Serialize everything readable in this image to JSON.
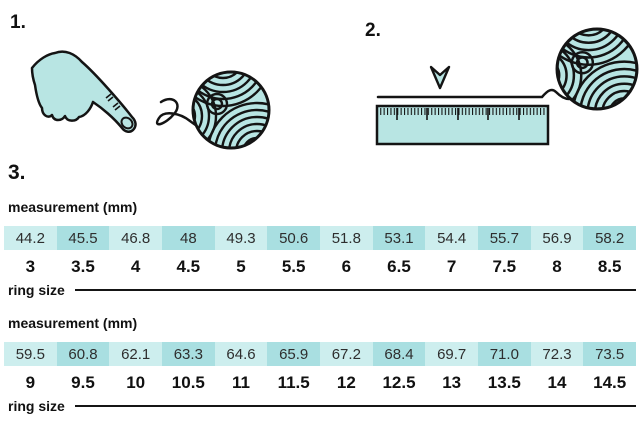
{
  "steps": {
    "one": "1.",
    "two": "2.",
    "three": "3."
  },
  "colors": {
    "illustration_fill": "#b8e5e3",
    "cell_light": "#cdeeee",
    "cell_dark": "#a9dfe1",
    "outline": "#141414",
    "value_text": "#2e2e2e"
  },
  "icons": {
    "step1": [
      "pointing-hand-icon",
      "string-icon",
      "yarn-ball-icon"
    ],
    "step2": [
      "down-arrow-icon",
      "string-icon",
      "ruler-icon",
      "yarn-ball-icon"
    ]
  },
  "tables": [
    {
      "measurement_label": "measurement (mm)",
      "ring_size_label": "ring size",
      "measurements": [
        "44.2",
        "45.5",
        "46.8",
        "48",
        "49.3",
        "50.6",
        "51.8",
        "53.1",
        "54.4",
        "55.7",
        "56.9",
        "58.2"
      ],
      "ring_sizes": [
        "3",
        "3.5",
        "4",
        "4.5",
        "5",
        "5.5",
        "6",
        "6.5",
        "7",
        "7.5",
        "8",
        "8.5"
      ]
    },
    {
      "measurement_label": "measurement (mm)",
      "ring_size_label": "ring size",
      "measurements": [
        "59.5",
        "60.8",
        "62.1",
        "63.3",
        "64.6",
        "65.9",
        "67.2",
        "68.4",
        "69.7",
        "71.0",
        "72.3",
        "73.5"
      ],
      "ring_sizes": [
        "9",
        "9.5",
        "10",
        "10.5",
        "11",
        "11.5",
        "12",
        "12.5",
        "13",
        "13.5",
        "14",
        "14.5"
      ]
    }
  ]
}
